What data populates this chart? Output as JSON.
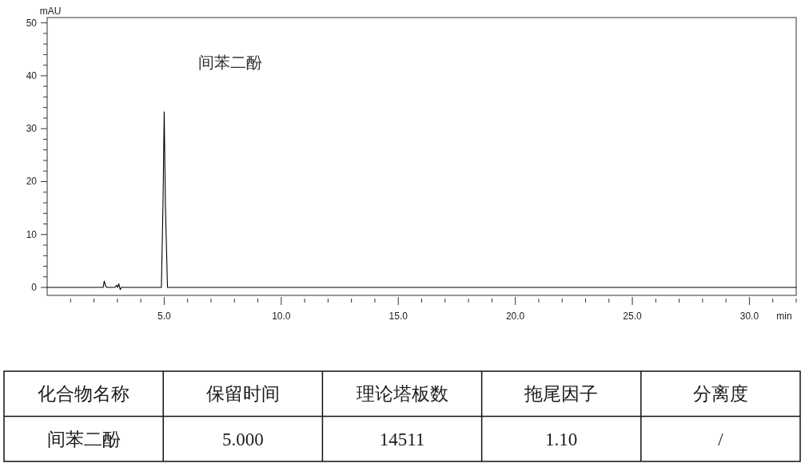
{
  "chart_data": [
    {
      "type": "line",
      "xlabel": "min",
      "ylabel": "mAU",
      "xlim": [
        0,
        32
      ],
      "ylim": [
        -1.5,
        51
      ],
      "xticks": [
        {
          "value": 1,
          "label": null
        },
        {
          "value": 2,
          "label": null
        },
        {
          "value": 3,
          "label": null
        },
        {
          "value": 4,
          "label": null
        },
        {
          "value": 5,
          "label": "5.0"
        },
        {
          "value": 6,
          "label": null
        },
        {
          "value": 7,
          "label": null
        },
        {
          "value": 8,
          "label": null
        },
        {
          "value": 9,
          "label": null
        },
        {
          "value": 10,
          "label": "10.0"
        },
        {
          "value": 11,
          "label": null
        },
        {
          "value": 12,
          "label": null
        },
        {
          "value": 13,
          "label": null
        },
        {
          "value": 14,
          "label": null
        },
        {
          "value": 15,
          "label": "15.0"
        },
        {
          "value": 16,
          "label": null
        },
        {
          "value": 17,
          "label": null
        },
        {
          "value": 18,
          "label": null
        },
        {
          "value": 19,
          "label": null
        },
        {
          "value": 20,
          "label": "20.0"
        },
        {
          "value": 21,
          "label": null
        },
        {
          "value": 22,
          "label": null
        },
        {
          "value": 23,
          "label": null
        },
        {
          "value": 24,
          "label": null
        },
        {
          "value": 25,
          "label": "25.0"
        },
        {
          "value": 26,
          "label": null
        },
        {
          "value": 27,
          "label": null
        },
        {
          "value": 28,
          "label": null
        },
        {
          "value": 29,
          "label": null
        },
        {
          "value": 30,
          "label": "30.0"
        },
        {
          "value": 31,
          "label": null
        },
        {
          "value": 32,
          "label": null
        }
      ],
      "yticks": [
        0,
        {
          "value": 2,
          "label": null
        },
        {
          "value": 4,
          "label": null
        },
        {
          "value": 6,
          "label": null
        },
        {
          "value": 8,
          "label": null
        },
        10,
        {
          "value": 12,
          "label": null
        },
        {
          "value": 14,
          "label": null
        },
        {
          "value": 16,
          "label": null
        },
        {
          "value": 18,
          "label": null
        },
        20,
        {
          "value": 22,
          "label": null
        },
        {
          "value": 24,
          "label": null
        },
        {
          "value": 26,
          "label": null
        },
        {
          "value": 28,
          "label": null
        },
        30,
        {
          "value": 32,
          "label": null
        },
        {
          "value": 34,
          "label": null
        },
        {
          "value": 36,
          "label": null
        },
        {
          "value": 38,
          "label": null
        },
        40,
        {
          "value": 42,
          "label": null
        },
        {
          "value": 44,
          "label": null
        },
        {
          "value": 46,
          "label": null
        },
        {
          "value": 48,
          "label": null
        },
        50
      ],
      "x": [
        0,
        2.39,
        2.44,
        2.5,
        2.56,
        2.89,
        2.97,
        3.01,
        3.06,
        3.12,
        3.17,
        4.88,
        4.95,
        5.0,
        5.05,
        5.14,
        32
      ],
      "series": [
        {
          "color": "#000000",
          "values": [
            0,
            0,
            1.2,
            0.2,
            0,
            0,
            0.4,
            0,
            0.7,
            -0.4,
            0,
            0,
            16,
            33.2,
            16,
            0,
            0
          ]
        }
      ],
      "annotations": [
        "间苯二酚"
      ]
    },
    {
      "type": "other",
      "categories": [
        "化合物名称",
        "保留时间",
        "理论塔板数",
        "拖尾因子",
        "分离度"
      ],
      "annotations": [
        "间苯二酚",
        "5.000",
        "14511",
        "1.10",
        "/"
      ]
    }
  ]
}
